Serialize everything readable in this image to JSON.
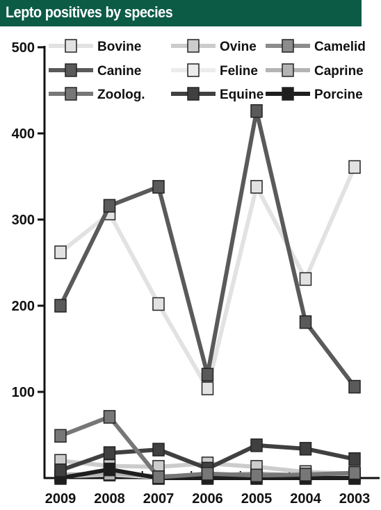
{
  "header": {
    "title": "Lepto positives by species"
  },
  "chart_data": {
    "type": "line",
    "title": "Lepto positives by species",
    "xlabel": "",
    "ylabel": "",
    "categories": [
      "2009",
      "2008",
      "2007",
      "2006",
      "2005",
      "2004",
      "2003"
    ],
    "ylim": [
      0,
      500
    ],
    "yticks": [
      100,
      200,
      300,
      400,
      500
    ],
    "grid": false,
    "legend_position": "top",
    "series": [
      {
        "name": "Bovine",
        "color": "#e2e2e2",
        "values": [
          262,
          307,
          202,
          104,
          338,
          231,
          361
        ]
      },
      {
        "name": "Ovine",
        "color": "#cccccc",
        "values": [
          20,
          14,
          13,
          17,
          13,
          7,
          5
        ]
      },
      {
        "name": "Camelid",
        "color": "#8c8c8c",
        "values": [
          3,
          5,
          2,
          3,
          5,
          3,
          4
        ]
      },
      {
        "name": "Canine",
        "color": "#5a5a5a",
        "values": [
          200,
          316,
          338,
          120,
          426,
          181,
          106
        ]
      },
      {
        "name": "Feline",
        "color": "#ececec",
        "values": [
          2,
          4,
          1,
          2,
          2,
          1,
          2
        ]
      },
      {
        "name": "Caprine",
        "color": "#b4b4b4",
        "values": [
          4,
          5,
          2,
          3,
          4,
          3,
          3
        ]
      },
      {
        "name": "Zoolog.",
        "color": "#777777",
        "values": [
          49,
          71,
          1,
          5,
          3,
          4,
          6
        ]
      },
      {
        "name": "Equine",
        "color": "#404040",
        "values": [
          9,
          29,
          33,
          11,
          38,
          34,
          22
        ]
      },
      {
        "name": "Porcine",
        "color": "#1e1e1e",
        "values": [
          0,
          10,
          0,
          0,
          0,
          0,
          0
        ]
      }
    ]
  }
}
